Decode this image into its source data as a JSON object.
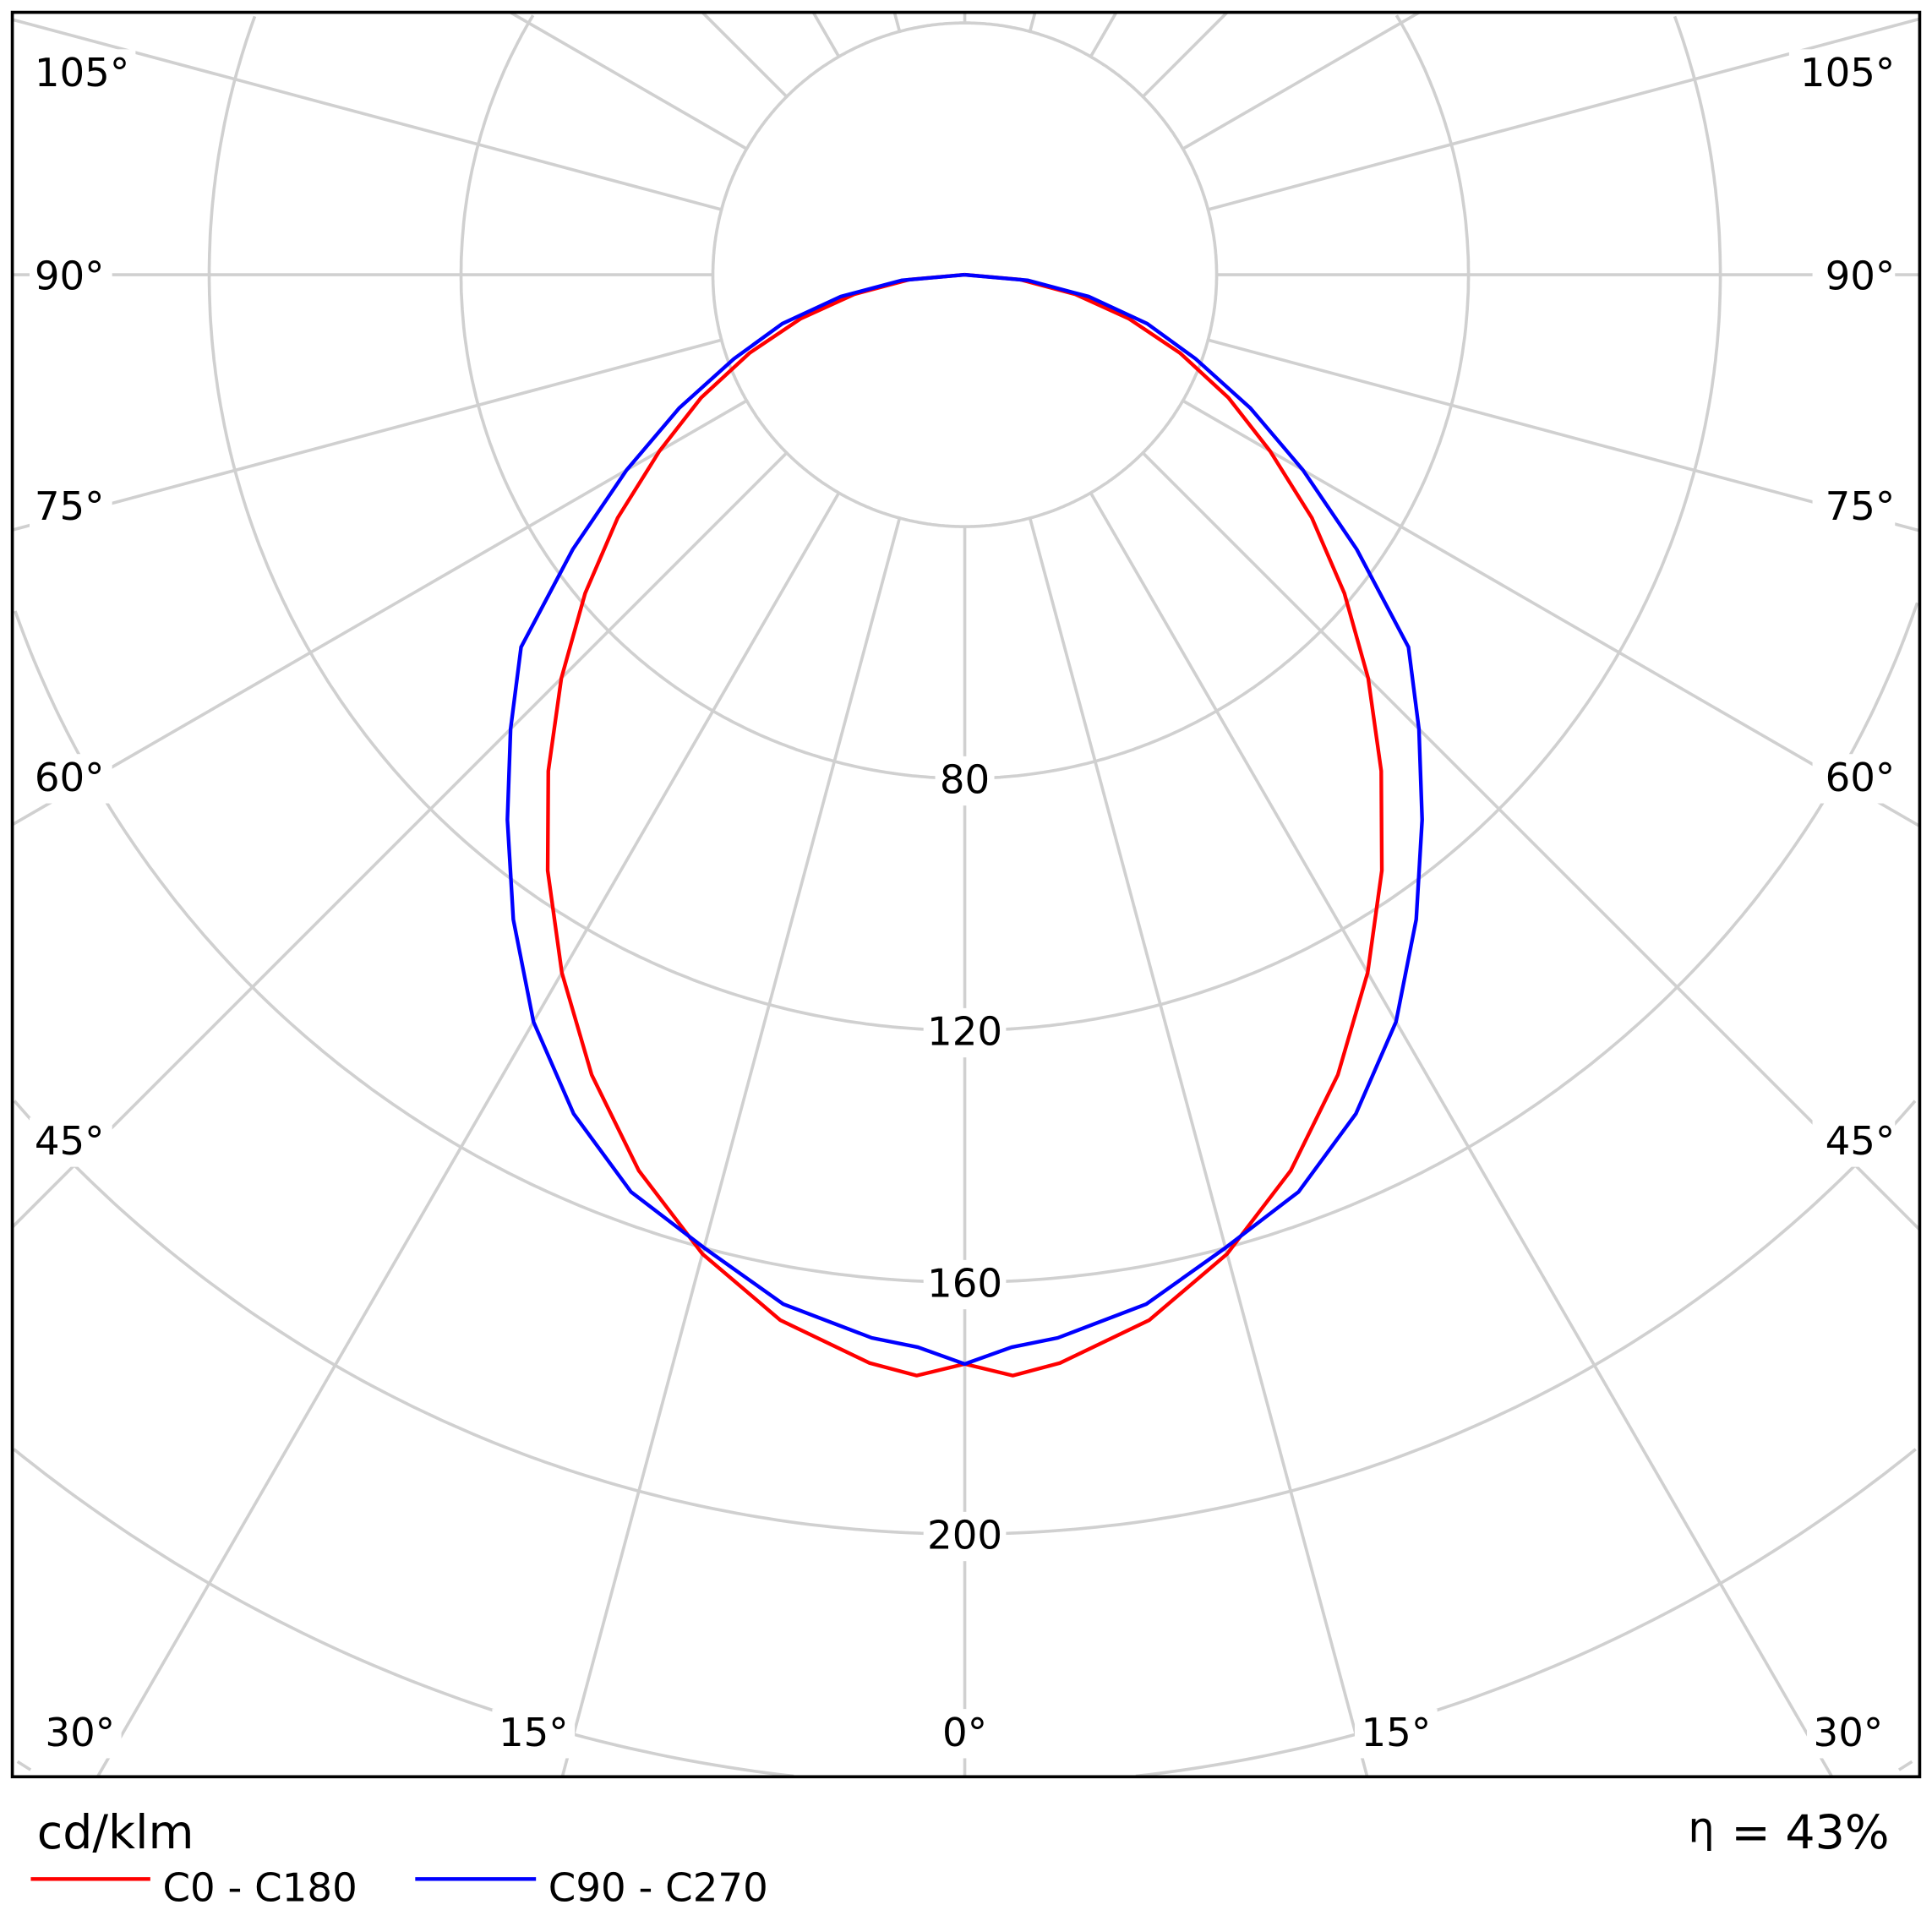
{
  "chart_data": {
    "type": "polar-line",
    "unit_label": "cd/klm",
    "efficiency_symbol": "η",
    "efficiency_text": "= 43%",
    "radial_range": [
      0,
      240
    ],
    "radial_ticks": [
      40,
      80,
      120,
      160,
      200,
      240,
      280,
      320
    ],
    "radial_tick_labels": [
      "80",
      "120",
      "160",
      "200"
    ],
    "radial_tick_label_values": [
      80,
      120,
      160,
      200
    ],
    "angle_step_deg": 15,
    "angle_tick_labels": {
      "left": [
        "105°",
        "90°",
        "75°",
        "60°",
        "45°"
      ],
      "bottom": [
        "30°",
        "15°",
        "0°",
        "15°",
        "30°"
      ],
      "right": [
        "105°",
        "90°",
        "75°",
        "60°",
        "45°"
      ]
    },
    "grid": true,
    "legend_position": "bottom-left",
    "angles_deg": [
      0,
      2.5,
      5,
      10,
      15,
      20,
      25,
      30,
      35,
      40,
      45,
      50,
      55,
      60,
      65,
      70,
      75,
      80,
      85,
      90
    ],
    "series": [
      {
        "name": "C0 - C180",
        "color": "#ff0000",
        "values": [
          173,
          175,
          173.5,
          168.6,
          161,
          151.4,
          140.2,
          128,
          115.5,
          102.9,
          90.6,
          78.7,
          67.3,
          56,
          46.2,
          36.4,
          27,
          17.8,
          8.8,
          0
        ]
      },
      {
        "name": "C90 - C270",
        "color": "#0000ff",
        "values": [
          173,
          170.5,
          169.5,
          166,
          160,
          155,
          147,
          137,
          125,
          113,
          102,
          92,
          76,
          62,
          50,
          39,
          30,
          20,
          10,
          0
        ]
      }
    ]
  }
}
